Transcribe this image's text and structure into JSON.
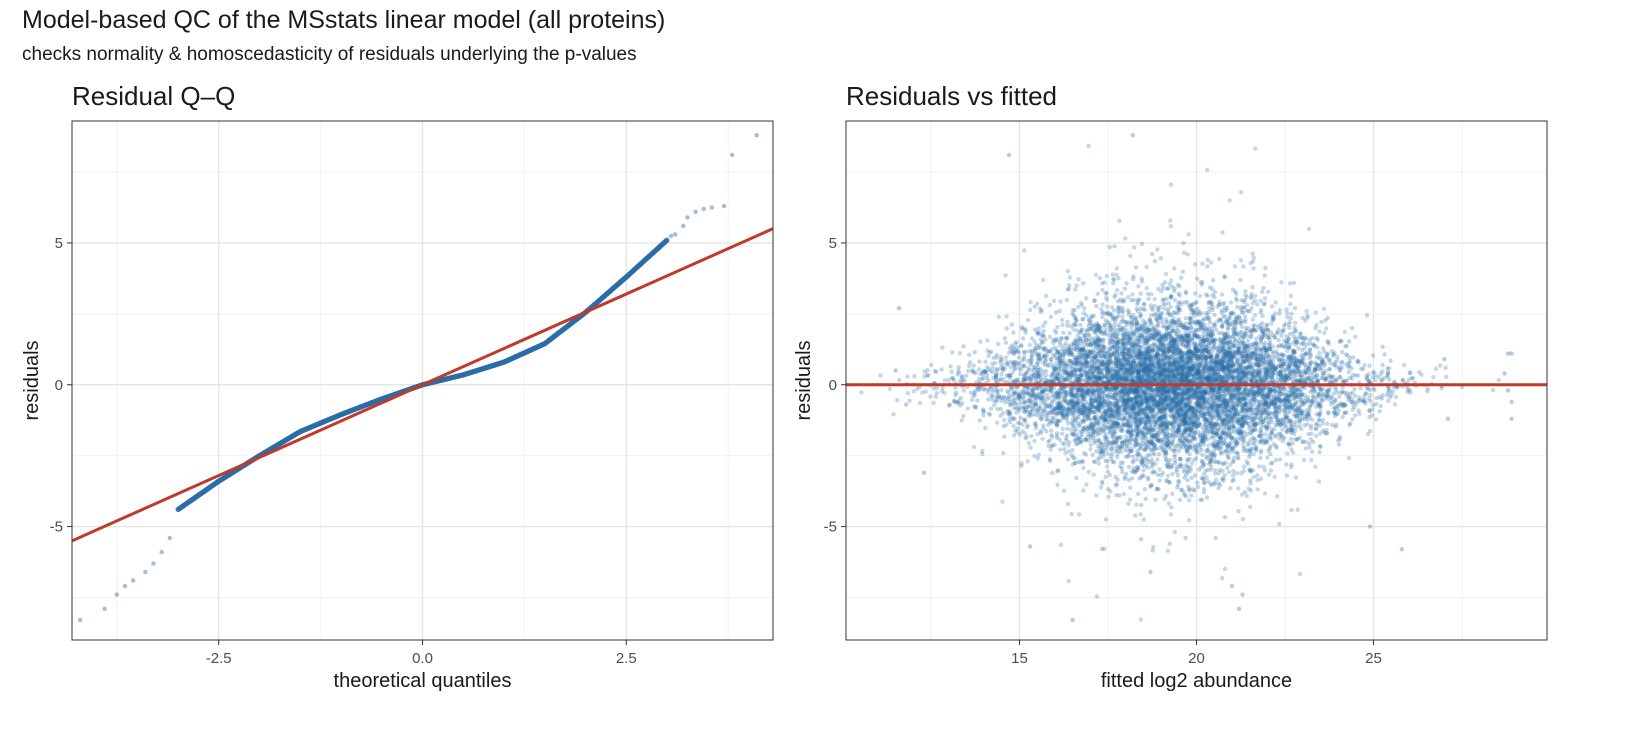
{
  "figure": {
    "title": "Model-based QC of the MSstats linear model (all proteins)",
    "subtitle": "checks normality & homoscedasticity of residuals underlying the p-values"
  },
  "colors": {
    "points": "#2b6ea8",
    "reference_line": "#c0392b",
    "panel_border": "#333333",
    "grid_major": "#e5e5e5",
    "grid_minor": "#f2f2f2"
  },
  "chart_data": [
    {
      "type": "scatter",
      "title": "Residual Q–Q",
      "xlabel": "theoretical quantiles",
      "ylabel": "residuals",
      "xlim": [
        -4.3,
        4.3
      ],
      "ylim": [
        -9.0,
        9.3
      ],
      "xticks": [
        -2.5,
        0.0,
        2.5
      ],
      "xtick_labels": [
        "-2.5",
        "0.0",
        "2.5"
      ],
      "yticks": [
        -5,
        0,
        5
      ],
      "ytick_labels": [
        "-5",
        "0",
        "5"
      ],
      "grid": true,
      "reference_line": {
        "intercept": 0.0,
        "slope": 1.28
      },
      "qq_curve": [
        {
          "x": -3.0,
          "y": -4.4
        },
        {
          "x": -2.5,
          "y": -3.4
        },
        {
          "x": -2.0,
          "y": -2.5
        },
        {
          "x": -1.5,
          "y": -1.65
        },
        {
          "x": -1.0,
          "y": -1.05
        },
        {
          "x": -0.5,
          "y": -0.5
        },
        {
          "x": 0.0,
          "y": 0.0
        },
        {
          "x": 0.5,
          "y": 0.35
        },
        {
          "x": 1.0,
          "y": 0.8
        },
        {
          "x": 1.5,
          "y": 1.45
        },
        {
          "x": 2.0,
          "y": 2.55
        },
        {
          "x": 2.5,
          "y": 3.8
        },
        {
          "x": 3.0,
          "y": 5.1
        }
      ],
      "outliers": [
        {
          "x": -4.2,
          "y": -8.3
        },
        {
          "x": -3.9,
          "y": -7.9
        },
        {
          "x": -3.75,
          "y": -7.4
        },
        {
          "x": -3.65,
          "y": -7.1
        },
        {
          "x": -3.55,
          "y": -6.9
        },
        {
          "x": -3.4,
          "y": -6.6
        },
        {
          "x": -3.3,
          "y": -6.3
        },
        {
          "x": -3.2,
          "y": -5.9
        },
        {
          "x": -3.1,
          "y": -5.4
        },
        {
          "x": 3.05,
          "y": 5.25
        },
        {
          "x": 3.1,
          "y": 5.3
        },
        {
          "x": 3.2,
          "y": 5.6
        },
        {
          "x": 3.25,
          "y": 5.9
        },
        {
          "x": 3.35,
          "y": 6.1
        },
        {
          "x": 3.45,
          "y": 6.2
        },
        {
          "x": 3.55,
          "y": 6.25
        },
        {
          "x": 3.7,
          "y": 6.3
        },
        {
          "x": 3.8,
          "y": 8.1
        },
        {
          "x": 4.1,
          "y": 8.8
        }
      ]
    },
    {
      "type": "scatter",
      "title": "Residuals vs fitted",
      "xlabel": "fitted log2 abundance",
      "ylabel": "residuals",
      "xlim": [
        10.1,
        29.9
      ],
      "ylim": [
        -9.0,
        9.3
      ],
      "xticks": [
        15,
        20,
        25
      ],
      "xtick_labels": [
        "15",
        "20",
        "25"
      ],
      "yticks": [
        -5,
        0,
        5
      ],
      "ytick_labels": [
        "-5",
        "0",
        "5"
      ],
      "grid": true,
      "reference_line": {
        "intercept": 0.0,
        "slope": 0.0
      },
      "cloud": {
        "x_center": 19.3,
        "x_spread": 2.4,
        "y_spread": 1.4,
        "n_points": 9000
      },
      "outliers": [
        {
          "x": 14.7,
          "y": 8.1
        },
        {
          "x": 18.2,
          "y": 8.8
        },
        {
          "x": 16.5,
          "y": -8.3
        },
        {
          "x": 21.2,
          "y": -7.9
        },
        {
          "x": 21.0,
          "y": -7.1
        },
        {
          "x": 21.3,
          "y": -7.4
        },
        {
          "x": 18.7,
          "y": -6.6
        },
        {
          "x": 15.3,
          "y": -5.7
        },
        {
          "x": 25.8,
          "y": -5.8
        },
        {
          "x": 24.9,
          "y": -5.0
        },
        {
          "x": 28.8,
          "y": 1.1
        },
        {
          "x": 28.9,
          "y": 1.1
        },
        {
          "x": 28.7,
          "y": 0.4
        },
        {
          "x": 28.8,
          "y": -0.2
        },
        {
          "x": 28.9,
          "y": -0.6
        },
        {
          "x": 28.9,
          "y": -1.2
        },
        {
          "x": 11.5,
          "y": 0.5
        },
        {
          "x": 11.8,
          "y": -0.7
        },
        {
          "x": 11.6,
          "y": 2.7
        },
        {
          "x": 12.3,
          "y": -3.1
        },
        {
          "x": 27.0,
          "y": 0.9
        },
        {
          "x": 27.1,
          "y": -1.2
        }
      ]
    }
  ]
}
